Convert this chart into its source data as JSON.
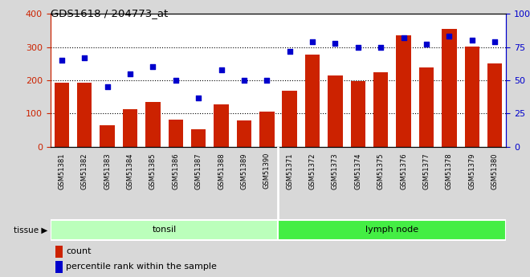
{
  "title": "GDS1618 / 204773_at",
  "samples": [
    "GSM51381",
    "GSM51382",
    "GSM51383",
    "GSM51384",
    "GSM51385",
    "GSM51386",
    "GSM51387",
    "GSM51388",
    "GSM51389",
    "GSM51390",
    "GSM51371",
    "GSM51372",
    "GSM51373",
    "GSM51374",
    "GSM51375",
    "GSM51376",
    "GSM51377",
    "GSM51378",
    "GSM51379",
    "GSM51380"
  ],
  "counts": [
    193,
    192,
    65,
    112,
    135,
    82,
    52,
    128,
    79,
    105,
    168,
    278,
    215,
    197,
    225,
    335,
    238,
    355,
    302,
    250
  ],
  "percentiles": [
    65,
    67,
    45,
    55,
    60,
    50,
    37,
    58,
    50,
    50,
    72,
    79,
    78,
    75,
    75,
    82,
    77,
    83,
    80,
    79
  ],
  "tonsil_count": 10,
  "lymph_count": 10,
  "bar_color": "#cc2200",
  "dot_color": "#0000cc",
  "ylim_left": [
    0,
    400
  ],
  "ylim_right": [
    0,
    100
  ],
  "yticks_left": [
    0,
    100,
    200,
    300,
    400
  ],
  "yticks_right": [
    0,
    25,
    50,
    75,
    100
  ],
  "yticklabels_right": [
    "0",
    "25",
    "50",
    "75",
    "100%"
  ],
  "grid_lines": [
    100,
    200,
    300
  ],
  "tonsil_color": "#bbffbb",
  "lymph_color": "#44ee44",
  "tissue_label": "tissue",
  "tonsil_label": "tonsil",
  "lymph_label": "lymph node",
  "legend_count_label": "count",
  "legend_pct_label": "percentile rank within the sample",
  "background_color": "#d8d8d8",
  "xticklabel_bg": "#cccccc",
  "plot_bg_color": "#ffffff"
}
